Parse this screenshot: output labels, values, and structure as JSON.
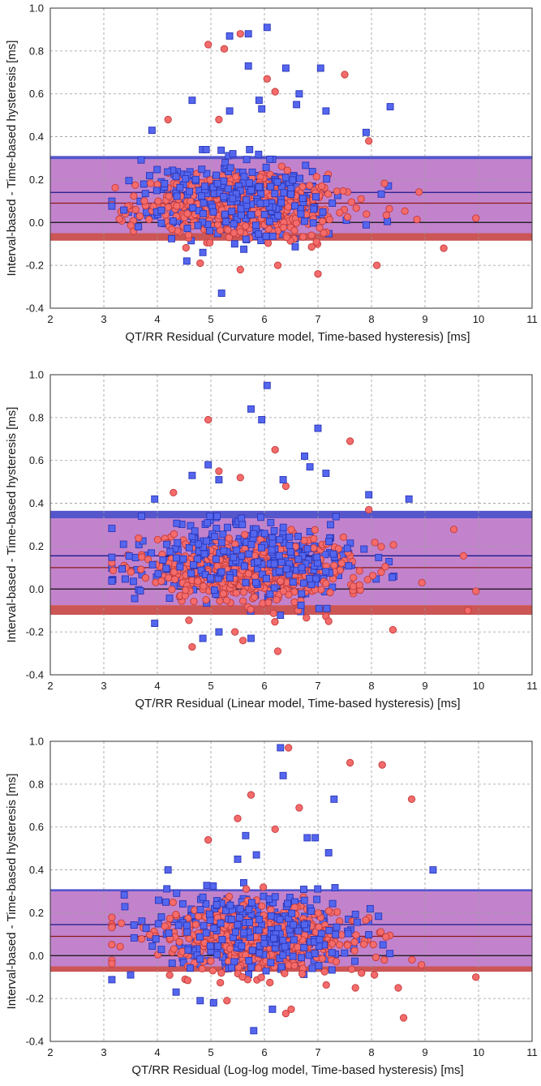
{
  "figure": {
    "panel_count": 3
  },
  "colors": {
    "blue_marker_fill": "#5566ee",
    "blue_marker_edge": "#2a36b8",
    "red_marker_fill": "#f46b6b",
    "red_marker_edge": "#c23a3a",
    "blue_band": "#5555cc",
    "red_band": "#cc5555",
    "overlap_band": "#c283cc",
    "blue_mean_line": "#1a1a8c",
    "red_mean_line": "#8c1a1a",
    "zero_line": "#111111",
    "grid": "#9a9a9a"
  },
  "chart_data": [
    {
      "type": "scatter",
      "title": "",
      "xlabel": "QT/RR Residual (Curvature model, Time-based hysteresis) [ms]",
      "ylabel": "Interval-based - Time-based hysteresis [ms]",
      "xlim": [
        2,
        11
      ],
      "ylim": [
        -0.4,
        1.0
      ],
      "x_ticks": [
        "2",
        "3",
        "4",
        "5",
        "6",
        "7",
        "8",
        "9",
        "10",
        "11"
      ],
      "y_ticks": [
        "-0.4",
        "-0.2",
        "0.0",
        "0.2",
        "0.4",
        "0.6",
        "0.8",
        "1.0"
      ],
      "grid": true,
      "bands": {
        "blue": {
          "mean": 0.14,
          "lower": -0.05,
          "upper": 0.31,
          "ci": 0.015
        },
        "red": {
          "mean": 0.09,
          "lower": -0.085,
          "upper": 0.295,
          "ci": 0.016
        }
      },
      "cloud": {
        "center_x": 5.6,
        "sd_x": 0.95,
        "n_blue": 420,
        "n_red": 520,
        "seed": 11
      },
      "series": [
        {
          "name": "blue squares",
          "marker": "square",
          "outliers": [
            [
              5.35,
              0.87
            ],
            [
              5.7,
              0.88
            ],
            [
              6.05,
              0.91
            ],
            [
              5.7,
              0.73
            ],
            [
              6.4,
              0.72
            ],
            [
              7.05,
              0.72
            ],
            [
              5.9,
              0.57
            ],
            [
              6.65,
              0.6
            ],
            [
              6.6,
              0.55
            ],
            [
              5.95,
              0.53
            ],
            [
              8.35,
              0.54
            ],
            [
              4.65,
              0.57
            ],
            [
              5.35,
              0.52
            ],
            [
              3.9,
              0.43
            ],
            [
              7.15,
              0.52
            ],
            [
              7.9,
              0.42
            ],
            [
              5.2,
              -0.33
            ],
            [
              4.85,
              -0.14
            ],
            [
              4.55,
              -0.18
            ]
          ]
        },
        {
          "name": "red circles",
          "marker": "circle",
          "outliers": [
            [
              4.95,
              0.83
            ],
            [
              5.55,
              0.88
            ],
            [
              5.25,
              0.81
            ],
            [
              6.05,
              0.67
            ],
            [
              7.5,
              0.69
            ],
            [
              6.2,
              0.61
            ],
            [
              5.15,
              0.48
            ],
            [
              4.2,
              0.48
            ],
            [
              7.95,
              0.38
            ],
            [
              8.1,
              -0.2
            ],
            [
              9.35,
              -0.12
            ],
            [
              9.95,
              0.02
            ],
            [
              7.0,
              -0.24
            ],
            [
              5.55,
              -0.22
            ],
            [
              4.8,
              -0.19
            ],
            [
              6.25,
              -0.2
            ]
          ]
        }
      ]
    },
    {
      "type": "scatter",
      "title": "",
      "xlabel": "QT/RR Residual (Linear model, Time-based hysteresis) [ms]",
      "ylabel": "Interval-based - Time-based hysteresis [ms]",
      "xlim": [
        2,
        11
      ],
      "ylim": [
        -0.4,
        1.0
      ],
      "x_ticks": [
        "2",
        "3",
        "4",
        "5",
        "6",
        "7",
        "8",
        "9",
        "10",
        "11"
      ],
      "y_ticks": [
        "-0.4",
        "-0.2",
        "0.0",
        "0.2",
        "0.4",
        "0.6",
        "0.8",
        "1.0"
      ],
      "grid": true,
      "bands": {
        "blue": {
          "mean": 0.155,
          "lower": -0.075,
          "upper": 0.365,
          "ci": 0.015
        },
        "red": {
          "mean": 0.1,
          "lower": -0.12,
          "upper": 0.33,
          "ci": 0.016
        }
      },
      "cloud": {
        "center_x": 5.7,
        "sd_x": 1.0,
        "n_blue": 420,
        "n_red": 520,
        "seed": 23
      },
      "series": [
        {
          "name": "blue squares",
          "marker": "square",
          "outliers": [
            [
              6.05,
              0.95
            ],
            [
              5.75,
              0.84
            ],
            [
              5.95,
              0.79
            ],
            [
              7.0,
              0.75
            ],
            [
              6.75,
              0.62
            ],
            [
              6.85,
              0.57
            ],
            [
              7.15,
              0.54
            ],
            [
              4.95,
              0.58
            ],
            [
              5.15,
              0.51
            ],
            [
              4.65,
              0.53
            ],
            [
              6.35,
              0.51
            ],
            [
              8.7,
              0.42
            ],
            [
              3.95,
              0.42
            ],
            [
              7.95,
              0.44
            ],
            [
              4.85,
              -0.23
            ],
            [
              5.75,
              -0.23
            ],
            [
              3.95,
              -0.16
            ],
            [
              5.15,
              -0.2
            ]
          ]
        },
        {
          "name": "red circles",
          "marker": "circle",
          "outliers": [
            [
              4.95,
              0.79
            ],
            [
              7.6,
              0.69
            ],
            [
              6.2,
              0.65
            ],
            [
              5.55,
              0.52
            ],
            [
              5.15,
              0.55
            ],
            [
              6.4,
              0.48
            ],
            [
              4.3,
              0.45
            ],
            [
              7.95,
              0.37
            ],
            [
              9.95,
              -0.01
            ],
            [
              9.8,
              -0.1
            ],
            [
              8.4,
              -0.19
            ],
            [
              4.65,
              -0.27
            ],
            [
              6.25,
              -0.29
            ],
            [
              5.6,
              -0.24
            ],
            [
              5.45,
              -0.2
            ],
            [
              7.2,
              -0.15
            ]
          ]
        }
      ]
    },
    {
      "type": "scatter",
      "title": "",
      "xlabel": "QT/RR Residual (Log-log model, Time-based hysteresis) [ms]",
      "ylabel": "Interval-based - Time-based hysteresis [ms]",
      "xlim": [
        2,
        11
      ],
      "ylim": [
        -0.4,
        1.0
      ],
      "x_ticks": [
        "2",
        "3",
        "4",
        "5",
        "6",
        "7",
        "8",
        "9",
        "10",
        "11"
      ],
      "y_ticks": [
        "-0.4",
        "-0.2",
        "0.0",
        "0.2",
        "0.4",
        "0.6",
        "0.8",
        "1.0"
      ],
      "grid": true,
      "bands": {
        "blue": {
          "mean": 0.145,
          "lower": -0.05,
          "upper": 0.31,
          "ci": 0.015
        },
        "red": {
          "mean": 0.09,
          "lower": -0.075,
          "upper": 0.3,
          "ci": 0.016
        }
      },
      "cloud": {
        "center_x": 5.9,
        "sd_x": 1.0,
        "n_blue": 420,
        "n_red": 520,
        "seed": 37
      },
      "series": [
        {
          "name": "blue squares",
          "marker": "square",
          "outliers": [
            [
              6.3,
              0.97
            ],
            [
              6.35,
              0.84
            ],
            [
              7.3,
              0.73
            ],
            [
              6.8,
              0.55
            ],
            [
              6.95,
              0.55
            ],
            [
              7.2,
              0.48
            ],
            [
              5.85,
              0.47
            ],
            [
              5.65,
              0.56
            ],
            [
              5.5,
              0.45
            ],
            [
              4.2,
              0.4
            ],
            [
              9.15,
              0.4
            ],
            [
              5.8,
              -0.35
            ],
            [
              6.15,
              -0.25
            ],
            [
              4.8,
              -0.21
            ],
            [
              5.05,
              -0.22
            ],
            [
              4.35,
              -0.17
            ],
            [
              3.5,
              -0.09
            ]
          ]
        },
        {
          "name": "red circles",
          "marker": "circle",
          "outliers": [
            [
              6.45,
              0.97
            ],
            [
              7.6,
              0.9
            ],
            [
              8.2,
              0.89
            ],
            [
              8.75,
              0.73
            ],
            [
              5.75,
              0.75
            ],
            [
              6.65,
              0.69
            ],
            [
              5.5,
              0.64
            ],
            [
              6.2,
              0.59
            ],
            [
              4.95,
              0.54
            ],
            [
              6.5,
              -0.25
            ],
            [
              6.4,
              -0.27
            ],
            [
              8.6,
              -0.29
            ],
            [
              7.7,
              -0.15
            ],
            [
              8.5,
              -0.15
            ],
            [
              9.95,
              -0.1
            ],
            [
              5.05,
              -0.22
            ],
            [
              5.3,
              -0.21
            ]
          ]
        }
      ]
    }
  ]
}
